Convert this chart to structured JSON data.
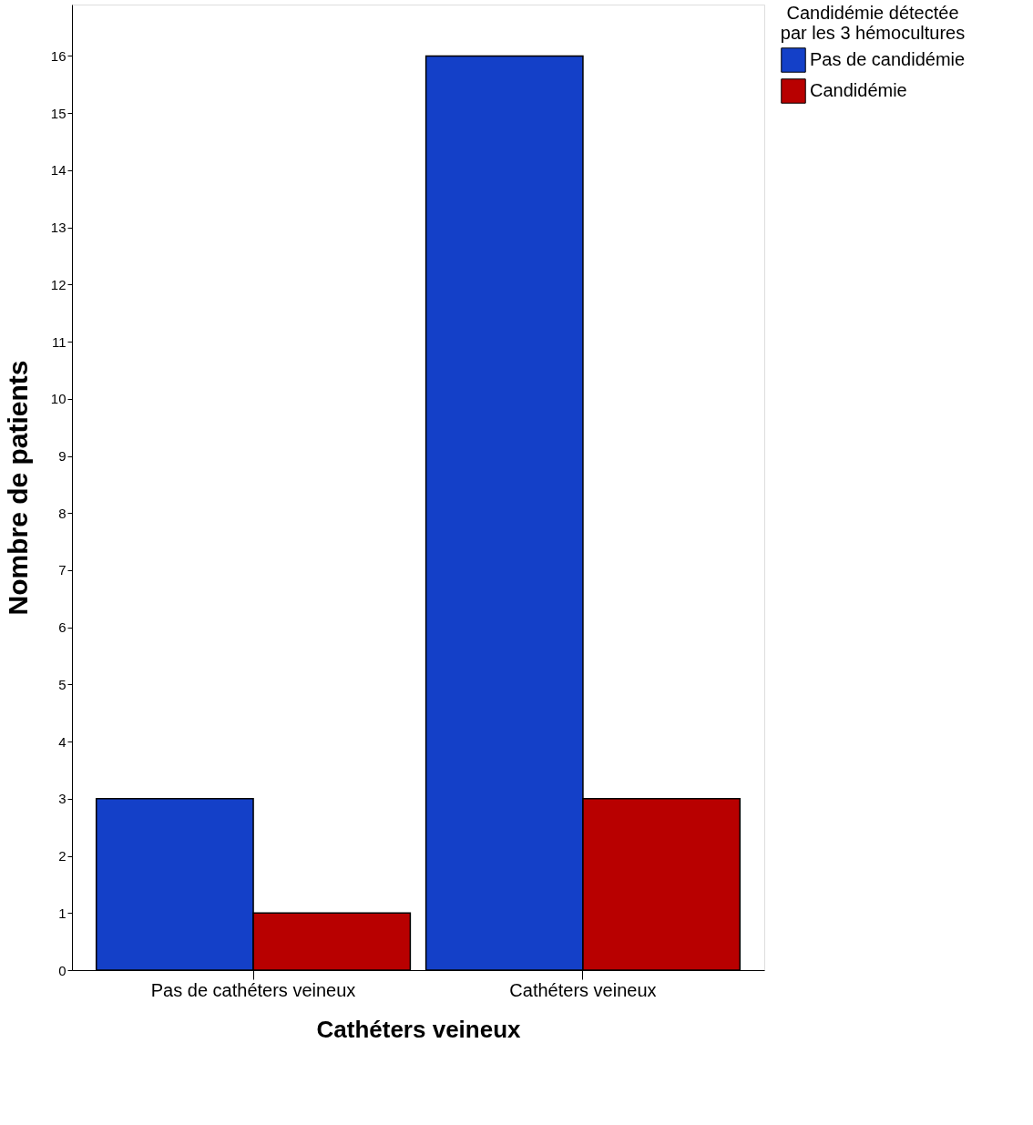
{
  "chart_data": {
    "type": "bar",
    "xlabel": "Cathéters veineux",
    "ylabel": "Nombre de patients",
    "legend_title": "Candidémie détectée par les 3 hémocultures",
    "categories": [
      "Pas de cathéters veineux",
      "Cathéters veineux"
    ],
    "series": [
      {
        "name": "Pas de candidémie",
        "color": "#1440c8",
        "values": [
          3,
          16
        ]
      },
      {
        "name": "Candidémie",
        "color": "#b80000",
        "values": [
          1,
          3
        ]
      }
    ],
    "ylim": [
      0,
      16.9
    ],
    "yticks": [
      0,
      1,
      2,
      3,
      4,
      5,
      6,
      7,
      8,
      9,
      10,
      11,
      12,
      13,
      14,
      15,
      16
    ],
    "grid": false,
    "legend": "top right"
  }
}
